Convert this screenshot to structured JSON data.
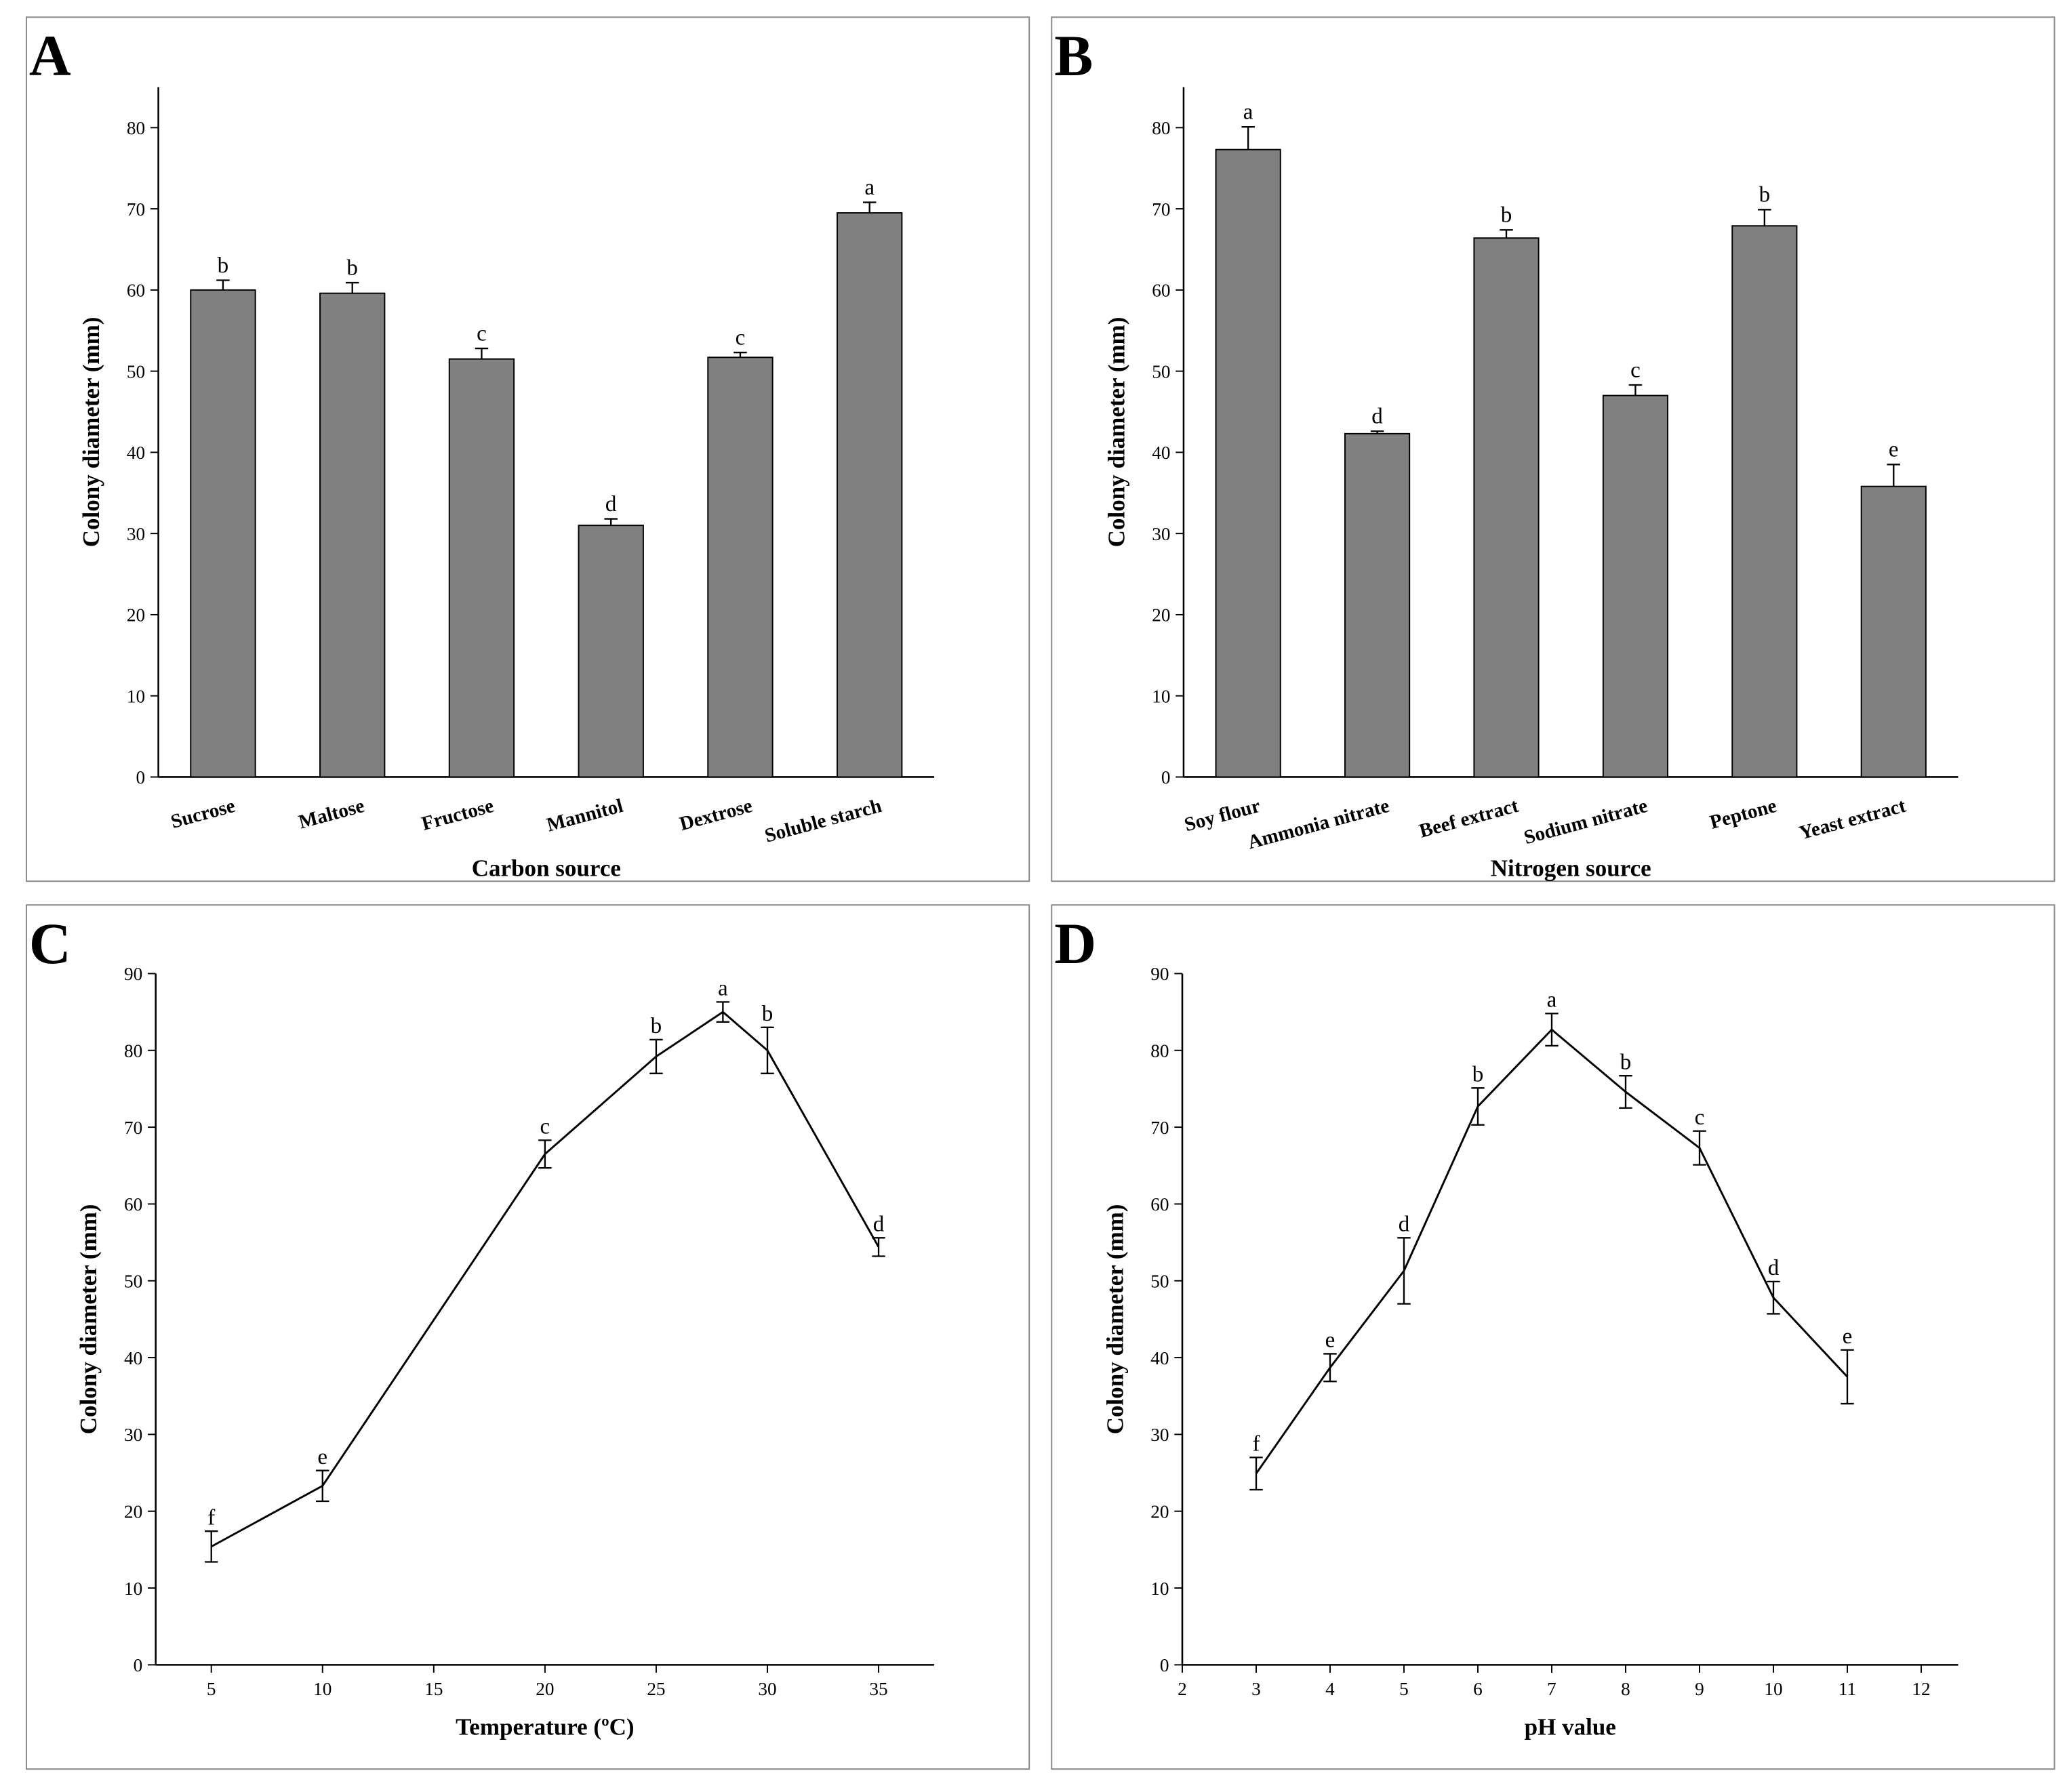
{
  "chart_data": [
    {
      "type": "bar",
      "title": "A",
      "x_label": "Carbon source",
      "y_label": "Colony diameter (mm)",
      "categories": [
        "Sucrose",
        "Maltose",
        "Fructose",
        "Mannitol",
        "Dextrose",
        "Soluble starch"
      ],
      "values": [
        60,
        59.6,
        51.5,
        31,
        51.7,
        69.5
      ],
      "errors": [
        1.2,
        1.3,
        1.3,
        0.8,
        0.6,
        1.3
      ],
      "annotations": [
        "b",
        "b",
        "c",
        "d",
        "c",
        "a"
      ],
      "color": "#808080",
      "ylim": [
        0,
        85
      ],
      "yticks": [
        0,
        10,
        20,
        30,
        40,
        50,
        60,
        70,
        80
      ]
    },
    {
      "type": "bar",
      "title": "B",
      "x_label": "Nitrogen source",
      "y_label": "Colony diameter (mm)",
      "categories": [
        "Soy flour",
        "Ammonia nitrate",
        "Beef extract",
        "Sodium nitrate",
        "Peptone",
        "Yeast extract"
      ],
      "values": [
        77.3,
        42.3,
        66.4,
        47,
        67.9,
        35.8
      ],
      "errors": [
        2.8,
        0.3,
        1,
        1.3,
        2,
        2.7
      ],
      "annotations": [
        "a",
        "d",
        "b",
        "c",
        "b",
        "e"
      ],
      "color": "#808080",
      "ylim": [
        0,
        85
      ],
      "yticks": [
        0,
        10,
        20,
        30,
        40,
        50,
        60,
        70,
        80
      ]
    },
    {
      "type": "line",
      "title": "C",
      "x_label": "Temperature (ºC)",
      "y_label": "Colony diameter (mm)",
      "x": [
        5,
        10,
        20,
        25,
        28,
        30,
        35
      ],
      "values": [
        15.4,
        23.3,
        66.5,
        79.2,
        85,
        80,
        54.4
      ],
      "errors": [
        2,
        2,
        1.8,
        2.2,
        1.3,
        3,
        1.2
      ],
      "annotations": [
        "f",
        "e",
        "c",
        "b",
        "a",
        "b",
        "d"
      ],
      "color": "#000000",
      "xlim": [
        2.5,
        37.5
      ],
      "xticks": [
        5,
        10,
        15,
        20,
        25,
        30,
        35
      ],
      "ylim": [
        0,
        90
      ],
      "yticks": [
        0,
        10,
        20,
        30,
        40,
        50,
        60,
        70,
        80,
        90
      ]
    },
    {
      "type": "line",
      "title": "D",
      "x_label": "pH value",
      "y_label": "Colony diameter (mm)",
      "x": [
        3,
        4,
        5,
        6,
        7,
        8,
        9,
        10,
        11
      ],
      "values": [
        24.9,
        38.7,
        51.3,
        72.7,
        82.7,
        74.6,
        67.3,
        47.8,
        37.5
      ],
      "errors": [
        2.1,
        1.8,
        4.3,
        2.4,
        2.1,
        2.1,
        2.2,
        2.1,
        3.5
      ],
      "annotations": [
        "f",
        "e",
        "d",
        "b",
        "a",
        "b",
        "c",
        "d",
        "e"
      ],
      "color": "#000000",
      "xlim": [
        2,
        12.5
      ],
      "xticks": [
        2,
        3,
        4,
        5,
        6,
        7,
        8,
        9,
        10,
        11,
        12
      ],
      "ylim": [
        0,
        90
      ],
      "yticks": [
        0,
        10,
        20,
        30,
        40,
        50,
        60,
        70,
        80,
        90
      ]
    }
  ]
}
